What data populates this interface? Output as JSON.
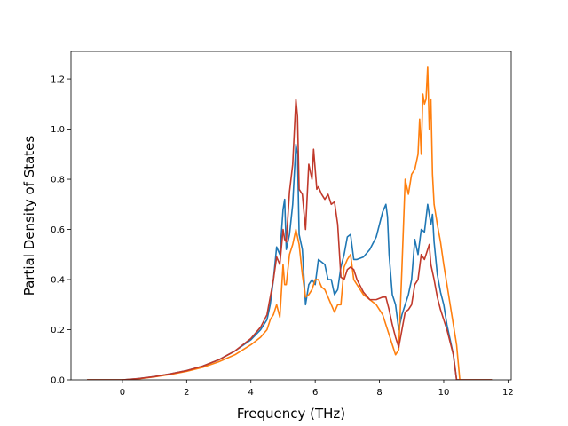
{
  "chart_data": {
    "type": "line",
    "title": "",
    "xlabel": "Frequency (THz)",
    "ylabel": "Partial Density of States",
    "xlim": [
      -1.6,
      12.1
    ],
    "ylim": [
      0,
      1.31
    ],
    "xticks": [
      0,
      2,
      4,
      6,
      8,
      10,
      12
    ],
    "xtick_labels": [
      "0",
      "2",
      "4",
      "6",
      "8",
      "10",
      "12"
    ],
    "yticks": [
      0.0,
      0.2,
      0.4,
      0.6,
      0.8,
      1.0,
      1.2
    ],
    "ytick_labels": [
      "0.0",
      "0.2",
      "0.4",
      "0.6",
      "0.8",
      "1.0",
      "1.2"
    ],
    "grid": false,
    "series": [
      {
        "color": "#1f77b4",
        "x": [
          -1.1,
          -0.5,
          0.0,
          0.5,
          1.0,
          1.5,
          2.0,
          2.5,
          3.0,
          3.5,
          4.0,
          4.3,
          4.5,
          4.6,
          4.7,
          4.8,
          4.9,
          5.0,
          5.05,
          5.1,
          5.2,
          5.3,
          5.4,
          5.45,
          5.5,
          5.6,
          5.7,
          5.8,
          5.9,
          6.0,
          6.1,
          6.2,
          6.3,
          6.4,
          6.5,
          6.6,
          6.7,
          6.8,
          6.9,
          7.0,
          7.1,
          7.2,
          7.3,
          7.5,
          7.7,
          7.9,
          8.1,
          8.2,
          8.25,
          8.3,
          8.4,
          8.5,
          8.6,
          8.7,
          8.8,
          8.9,
          9.0,
          9.1,
          9.2,
          9.3,
          9.4,
          9.5,
          9.6,
          9.65,
          9.7,
          9.8,
          9.9,
          10.0,
          10.1,
          10.2,
          10.3,
          10.4,
          10.5,
          11.0,
          11.5
        ],
        "y": [
          0.0,
          0.0,
          0.0,
          0.005,
          0.013,
          0.024,
          0.037,
          0.055,
          0.08,
          0.115,
          0.16,
          0.2,
          0.24,
          0.3,
          0.4,
          0.53,
          0.5,
          0.68,
          0.72,
          0.52,
          0.58,
          0.7,
          0.94,
          0.9,
          0.58,
          0.52,
          0.3,
          0.38,
          0.4,
          0.38,
          0.48,
          0.47,
          0.46,
          0.4,
          0.4,
          0.34,
          0.36,
          0.45,
          0.5,
          0.57,
          0.58,
          0.48,
          0.48,
          0.49,
          0.52,
          0.57,
          0.67,
          0.7,
          0.65,
          0.5,
          0.34,
          0.3,
          0.2,
          0.26,
          0.3,
          0.34,
          0.4,
          0.56,
          0.5,
          0.6,
          0.59,
          0.7,
          0.62,
          0.66,
          0.55,
          0.42,
          0.35,
          0.3,
          0.22,
          0.16,
          0.1,
          0.0,
          0.0,
          0.0,
          0.0
        ]
      },
      {
        "color": "#ff7f0e",
        "x": [
          -1.1,
          -0.5,
          0.0,
          0.5,
          1.0,
          1.5,
          2.0,
          2.5,
          3.0,
          3.5,
          4.0,
          4.3,
          4.5,
          4.6,
          4.7,
          4.8,
          4.9,
          5.0,
          5.05,
          5.1,
          5.2,
          5.3,
          5.4,
          5.5,
          5.6,
          5.7,
          5.8,
          5.9,
          6.0,
          6.1,
          6.2,
          6.3,
          6.4,
          6.5,
          6.6,
          6.7,
          6.8,
          6.9,
          7.0,
          7.1,
          7.2,
          7.3,
          7.5,
          7.7,
          7.9,
          8.1,
          8.2,
          8.3,
          8.4,
          8.5,
          8.6,
          8.7,
          8.8,
          8.9,
          9.0,
          9.1,
          9.2,
          9.25,
          9.3,
          9.35,
          9.4,
          9.45,
          9.5,
          9.55,
          9.6,
          9.65,
          9.7,
          9.8,
          9.9,
          10.0,
          10.1,
          10.2,
          10.3,
          10.4,
          10.5,
          11.0,
          11.5
        ],
        "y": [
          0.0,
          0.0,
          0.0,
          0.004,
          0.012,
          0.022,
          0.034,
          0.05,
          0.072,
          0.1,
          0.14,
          0.17,
          0.2,
          0.24,
          0.26,
          0.3,
          0.25,
          0.46,
          0.38,
          0.38,
          0.5,
          0.54,
          0.6,
          0.54,
          0.42,
          0.33,
          0.34,
          0.36,
          0.4,
          0.4,
          0.37,
          0.36,
          0.33,
          0.3,
          0.27,
          0.3,
          0.3,
          0.45,
          0.48,
          0.5,
          0.4,
          0.38,
          0.34,
          0.32,
          0.3,
          0.26,
          0.22,
          0.18,
          0.14,
          0.1,
          0.12,
          0.45,
          0.8,
          0.74,
          0.82,
          0.84,
          0.9,
          1.04,
          0.9,
          1.14,
          1.1,
          1.12,
          1.25,
          1.0,
          1.12,
          0.82,
          0.7,
          0.62,
          0.55,
          0.46,
          0.38,
          0.3,
          0.22,
          0.14,
          0.0,
          0.0,
          0.0
        ]
      },
      {
        "color": "#c0392b",
        "x": [
          -1.1,
          -0.5,
          0.0,
          0.5,
          1.0,
          1.5,
          2.0,
          2.5,
          3.0,
          3.5,
          4.0,
          4.3,
          4.5,
          4.6,
          4.7,
          4.8,
          4.9,
          5.0,
          5.05,
          5.1,
          5.2,
          5.3,
          5.4,
          5.45,
          5.5,
          5.6,
          5.7,
          5.8,
          5.9,
          5.95,
          6.0,
          6.05,
          6.1,
          6.2,
          6.3,
          6.4,
          6.5,
          6.6,
          6.7,
          6.8,
          6.9,
          7.0,
          7.1,
          7.2,
          7.3,
          7.5,
          7.7,
          7.9,
          8.1,
          8.2,
          8.3,
          8.4,
          8.5,
          8.6,
          8.7,
          8.8,
          8.9,
          9.0,
          9.1,
          9.2,
          9.3,
          9.4,
          9.5,
          9.55,
          9.6,
          9.7,
          9.8,
          9.9,
          10.0,
          10.1,
          10.2,
          10.3,
          10.4,
          10.5,
          11.0,
          11.5
        ],
        "y": [
          0.0,
          0.0,
          0.0,
          0.005,
          0.013,
          0.024,
          0.037,
          0.055,
          0.08,
          0.115,
          0.165,
          0.21,
          0.26,
          0.33,
          0.4,
          0.49,
          0.46,
          0.6,
          0.56,
          0.55,
          0.75,
          0.86,
          1.12,
          1.05,
          0.76,
          0.74,
          0.6,
          0.86,
          0.8,
          0.92,
          0.84,
          0.76,
          0.77,
          0.74,
          0.72,
          0.74,
          0.7,
          0.71,
          0.62,
          0.41,
          0.4,
          0.44,
          0.45,
          0.44,
          0.4,
          0.35,
          0.32,
          0.32,
          0.33,
          0.33,
          0.28,
          0.22,
          0.17,
          0.13,
          0.2,
          0.27,
          0.28,
          0.3,
          0.38,
          0.4,
          0.5,
          0.48,
          0.52,
          0.54,
          0.46,
          0.4,
          0.33,
          0.28,
          0.24,
          0.2,
          0.15,
          0.1,
          0.0,
          0.0,
          0.0,
          0.0
        ]
      }
    ]
  }
}
